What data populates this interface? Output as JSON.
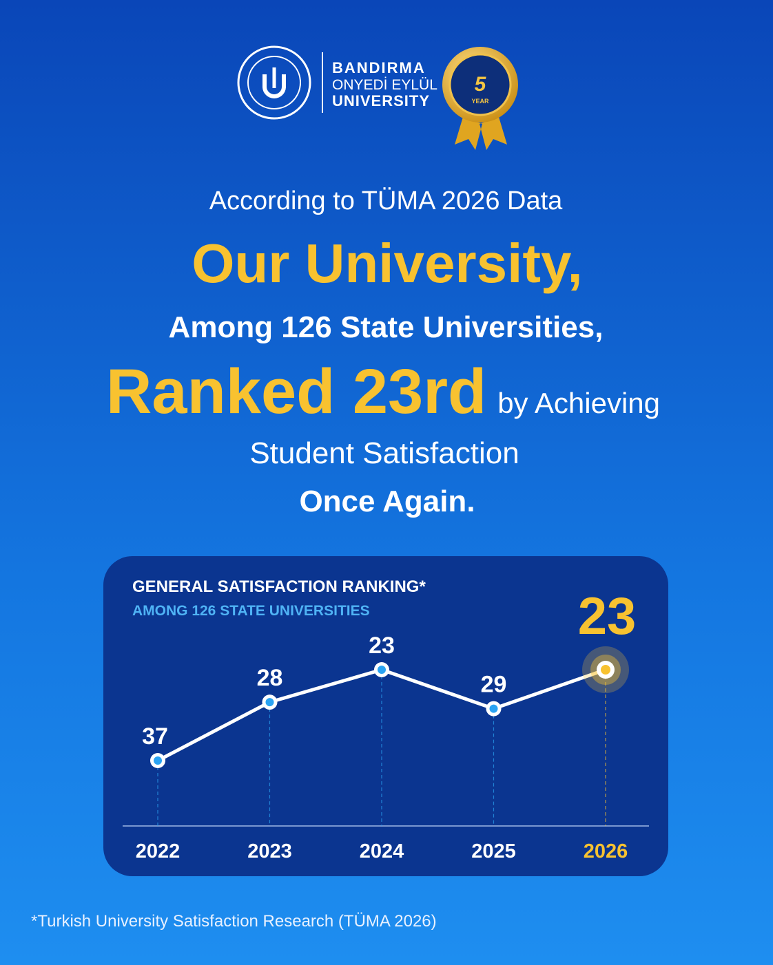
{
  "header": {
    "logo_line1": "BANDIRMA",
    "logo_line2": "ONYEDİ EYLÜL",
    "logo_line3": "UNIVERSITY",
    "badge": "5",
    "badge_sub": "YEAR"
  },
  "headline": {
    "intro": "According to TÜMA 2026 Data",
    "main": "Our University,",
    "among": "Among 126 State Universities,",
    "ranked": "Ranked 23rd",
    "ranked_tail": "by Achieving",
    "line5": "Student Satisfaction",
    "line6": "Once Again."
  },
  "chart_data": {
    "type": "line",
    "title": "GENERAL SATISFACTION RANKING*",
    "subtitle": "AMONG 126 STATE UNIVERSITIES",
    "categories": [
      "2022",
      "2023",
      "2024",
      "2025",
      "2026"
    ],
    "series": [
      {
        "name": "Ranking",
        "color": "#ffffff",
        "values": [
          37,
          28,
          23,
          29,
          23
        ]
      }
    ],
    "point_colors": [
      "#2aa3f2",
      "#2aa3f2",
      "#2aa3f2",
      "#2aa3f2",
      "#f8c230"
    ],
    "label_colors": [
      "#ffffff",
      "#ffffff",
      "#ffffff",
      "#ffffff",
      "#f8c230"
    ]
  },
  "footnote": "*Turkish University Satisfaction Research (TÜMA 2026)"
}
